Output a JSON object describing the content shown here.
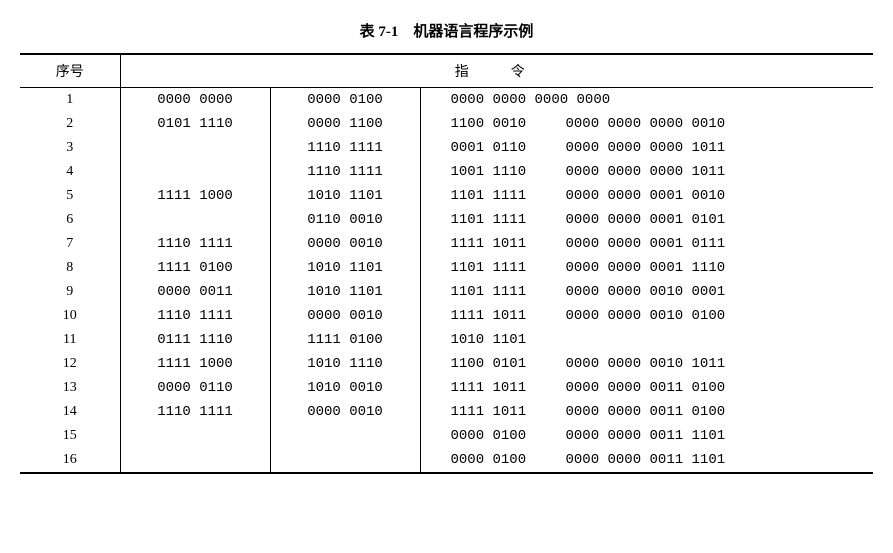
{
  "table": {
    "title": "表 7-1　机器语言程序示例",
    "headers": {
      "seq": "序号",
      "instruction": "指　令"
    },
    "colors": {
      "text": "#000000",
      "background": "#ffffff",
      "border": "#000000"
    },
    "font": {
      "family": "SimSun",
      "title_size": 15,
      "body_size": 14
    },
    "rows": [
      {
        "seq": "1",
        "c1": "0000 0000",
        "c2": "0000 0100",
        "c3a": "0000 0000 0000 0000",
        "c3b": ""
      },
      {
        "seq": "2",
        "c1": "0101 1110",
        "c2": "0000 1100",
        "c3a": "1100 0010",
        "c3b": "0000 0000 0000 0010"
      },
      {
        "seq": "3",
        "c1": "",
        "c2": "1110 1111",
        "c3a": "0001 0110",
        "c3b": "0000 0000 0000 1011"
      },
      {
        "seq": "4",
        "c1": "",
        "c2": "1110 1111",
        "c3a": "1001 1110",
        "c3b": "0000 0000 0000 1011"
      },
      {
        "seq": "5",
        "c1": "1111 1000",
        "c2": "1010 1101",
        "c3a": "1101 1111",
        "c3b": "0000 0000 0001 0010"
      },
      {
        "seq": "6",
        "c1": "",
        "c2": "0110 0010",
        "c3a": "1101 1111",
        "c3b": "0000 0000 0001 0101"
      },
      {
        "seq": "7",
        "c1": "1110 1111",
        "c2": "0000 0010",
        "c3a": "1111 1011",
        "c3b": "0000 0000 0001 0111"
      },
      {
        "seq": "8",
        "c1": "1111 0100",
        "c2": "1010 1101",
        "c3a": "1101 1111",
        "c3b": "0000 0000 0001 1110"
      },
      {
        "seq": "9",
        "c1": "0000 0011",
        "c2": "1010 1101",
        "c3a": "1101 1111",
        "c3b": "0000 0000 0010 0001"
      },
      {
        "seq": "10",
        "c1": "1110 1111",
        "c2": "0000 0010",
        "c3a": "1111 1011",
        "c3b": "0000 0000 0010 0100"
      },
      {
        "seq": "11",
        "c1": "0111 1110",
        "c2": "1111 0100",
        "c3a": "1010 1101",
        "c3b": ""
      },
      {
        "seq": "12",
        "c1": "1111 1000",
        "c2": "1010 1110",
        "c3a": "1100 0101",
        "c3b": "0000 0000 0010 1011"
      },
      {
        "seq": "13",
        "c1": "0000 0110",
        "c2": "1010 0010",
        "c3a": "1111 1011",
        "c3b": "0000 0000 0011 0100"
      },
      {
        "seq": "14",
        "c1": "1110 1111",
        "c2": "0000 0010",
        "c3a": "1111 1011",
        "c3b": "0000 0000 0011 0100"
      },
      {
        "seq": "15",
        "c1": "",
        "c2": "",
        "c3a": "0000 0100",
        "c3b": "0000 0000 0011 1101"
      },
      {
        "seq": "16",
        "c1": "",
        "c2": "",
        "c3a": "0000 0100",
        "c3b": "0000 0000 0011 1101"
      }
    ]
  }
}
